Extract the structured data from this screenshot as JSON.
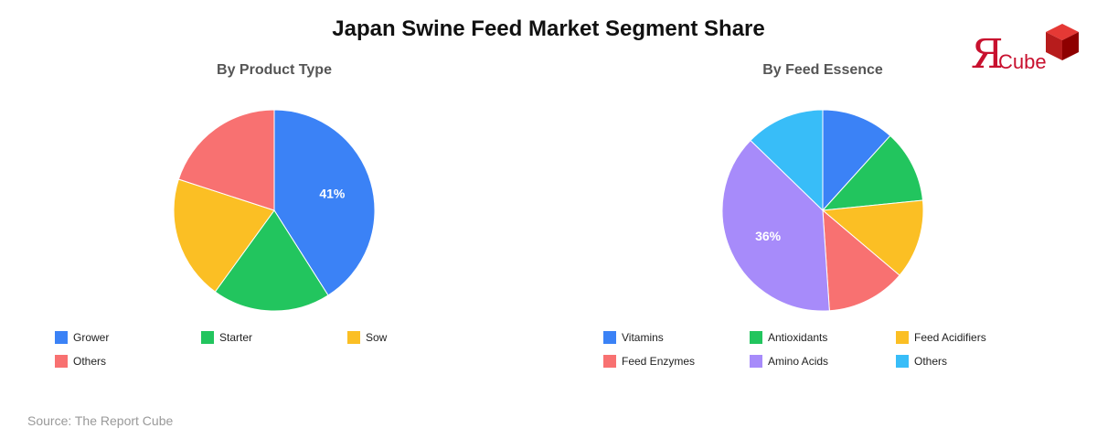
{
  "title": "Japan Swine Feed Market Segment Share",
  "source": "Source: The Report Cube",
  "logo": {
    "letter": "Я",
    "text": "Cube",
    "color": "#c8102e",
    "icon": "cube-icon"
  },
  "chart_data": [
    {
      "type": "pie",
      "title": "By Product Type",
      "categories": [
        "Grower",
        "Starter",
        "Sow",
        "Others"
      ],
      "values": [
        41,
        19,
        20,
        20
      ],
      "colors": [
        "#3b82f6",
        "#22c55e",
        "#fbbf24",
        "#f87171"
      ],
      "data_labels": [
        "41%",
        "",
        "",
        ""
      ],
      "legend_position": "bottom"
    },
    {
      "type": "pie",
      "title": "By Feed Essence",
      "categories": [
        "Vitamins",
        "Antioxidants",
        "Feed Acidifiers",
        "Feed Enzymes",
        "Amino Acids",
        "Others"
      ],
      "values": [
        11,
        11,
        12,
        12,
        36,
        12
      ],
      "colors": [
        "#3b82f6",
        "#22c55e",
        "#fbbf24",
        "#f87171",
        "#a78bfa",
        "#38bdf8"
      ],
      "data_labels": [
        "",
        "",
        "",
        "",
        "36%",
        ""
      ],
      "legend_position": "bottom"
    }
  ]
}
